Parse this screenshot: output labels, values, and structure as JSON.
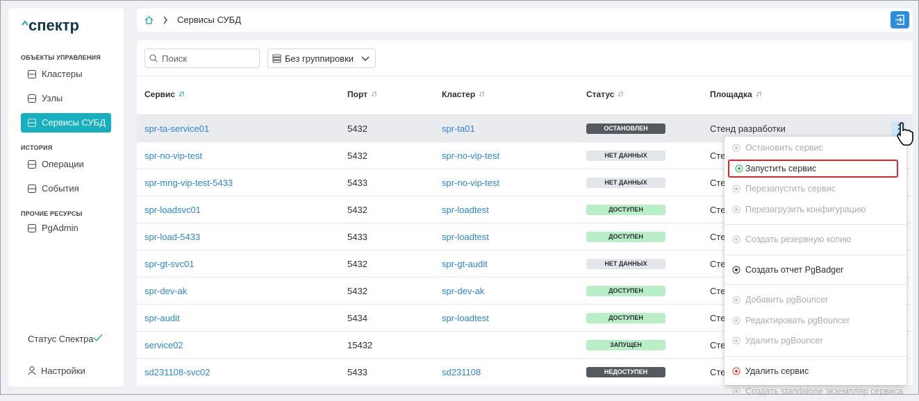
{
  "logo": "спектр",
  "sidebar": {
    "sections": [
      {
        "title": "ОБЪЕКТЫ УПРАВЛЕНИЯ",
        "items": [
          {
            "label": "Кластеры",
            "active": false
          },
          {
            "label": "Узлы",
            "active": false
          },
          {
            "label": "Сервисы СУБД",
            "active": true
          }
        ]
      },
      {
        "title": "ИСТОРИЯ",
        "items": [
          {
            "label": "Операции",
            "active": false
          },
          {
            "label": "События",
            "active": false
          }
        ]
      },
      {
        "title": "ПРОЧИЕ РЕСУРСЫ",
        "items": [
          {
            "label": "PgAdmin",
            "active": false
          }
        ]
      }
    ],
    "footer": {
      "status": "Статус Спектра",
      "settings": "Настройки"
    }
  },
  "breadcrumb": {
    "current": "Сервисы СУБД"
  },
  "toolbar": {
    "search_placeholder": "Поиск",
    "grouping": "Без группировки"
  },
  "table": {
    "columns": [
      "Сервис",
      "Порт",
      "Кластер",
      "Статус",
      "Площадка"
    ],
    "rows": [
      {
        "service": "spr-ta-service01",
        "port": 5432,
        "cluster": "spr-ta01",
        "status": "ОСТАНОВЛЕН",
        "status_color": "#555a60",
        "site": "Стенд разработки"
      },
      {
        "service": "spr-no-vip-test",
        "port": 5432,
        "cluster": "spr-no-vip-test",
        "status": "НЕТ ДАННЫХ",
        "status_color": "#e3e6ea",
        "site": "Стенд разработки"
      },
      {
        "service": "spr-mng-vip-test-5433",
        "port": 5433,
        "cluster": "spr-no-vip-test",
        "status": "НЕТ ДАННЫХ",
        "status_color": "#e3e6ea",
        "site": "Стенд разработки"
      },
      {
        "service": "spr-loadsvc01",
        "port": 5432,
        "cluster": "spr-loadtest",
        "status": "ДОСТУПЕН",
        "status_color": "#b9efc6",
        "site": "Стенд разработки"
      },
      {
        "service": "spr-load-5433",
        "port": 5433,
        "cluster": "spr-loadtest",
        "status": "ДОСТУПЕН",
        "status_color": "#b9efc6",
        "site": "Стенд разработки"
      },
      {
        "service": "spr-gt-svc01",
        "port": 5432,
        "cluster": "spr-gt-audit",
        "status": "НЕТ ДАННЫХ",
        "status_color": "#e3e6ea",
        "site": "Стенд разработки"
      },
      {
        "service": "spr-dev-ak",
        "port": 5432,
        "cluster": "spr-dev-ak",
        "status": "ДОСТУПЕН",
        "status_color": "#b9efc6",
        "site": "Стенд разработки"
      },
      {
        "service": "spr-audit",
        "port": 5434,
        "cluster": "spr-loadtest",
        "status": "ДОСТУПЕН",
        "status_color": "#b9efc6",
        "site": "Стенд разработки"
      },
      {
        "service": "service02",
        "port": 15432,
        "cluster": null,
        "status": "ЗАПУЩЕН",
        "status_color": "#b9efc6",
        "site": "Стенд разработки"
      },
      {
        "service": "sd231108-svc02",
        "port": 5433,
        "cluster": "sd231108",
        "status": "НЕДОСТУПЕН",
        "status_color": "#555a60",
        "site": "Стенд разработки"
      }
    ]
  },
  "menu": {
    "items": [
      {
        "label": "Остановить сервис",
        "enabled": false,
        "highlighted": false,
        "divider_before": false,
        "icon_color": "#c2c6cb"
      },
      {
        "label": "Запустить сервис",
        "enabled": true,
        "highlighted": true,
        "divider_before": false,
        "icon_color": "#2fae5b"
      },
      {
        "label": "Перезапустить сервис",
        "enabled": false,
        "highlighted": false,
        "divider_before": false,
        "icon_color": "#c2c6cb"
      },
      {
        "label": "Перезагрузить конфигурацию",
        "enabled": false,
        "highlighted": false,
        "divider_before": false,
        "icon_color": "#c2c6cb"
      },
      {
        "label": "Создать резервную копию",
        "enabled": false,
        "highlighted": false,
        "divider_before": true,
        "icon_color": "#c2c6cb"
      },
      {
        "label": "Создать отчет PgBadger",
        "enabled": true,
        "highlighted": false,
        "divider_before": true,
        "icon_color": "#33383d"
      },
      {
        "label": "Добавить pgBouncer",
        "enabled": false,
        "highlighted": false,
        "divider_before": true,
        "icon_color": "#c2c6cb"
      },
      {
        "label": "Редактировать pgBouncer",
        "enabled": false,
        "highlighted": false,
        "divider_before": false,
        "icon_color": "#c2c6cb"
      },
      {
        "label": "Удалить pgBouncer",
        "enabled": false,
        "highlighted": false,
        "divider_before": false,
        "icon_color": "#c2c6cb"
      },
      {
        "label": "Удалить сервис",
        "enabled": true,
        "highlighted": false,
        "divider_before": true,
        "icon_color": "#e03a3a"
      },
      {
        "label": "Создать standalone экземпляр сервиса",
        "enabled": false,
        "highlighted": false,
        "divider_before": false,
        "icon_color": "#c2c6cb"
      }
    ]
  }
}
